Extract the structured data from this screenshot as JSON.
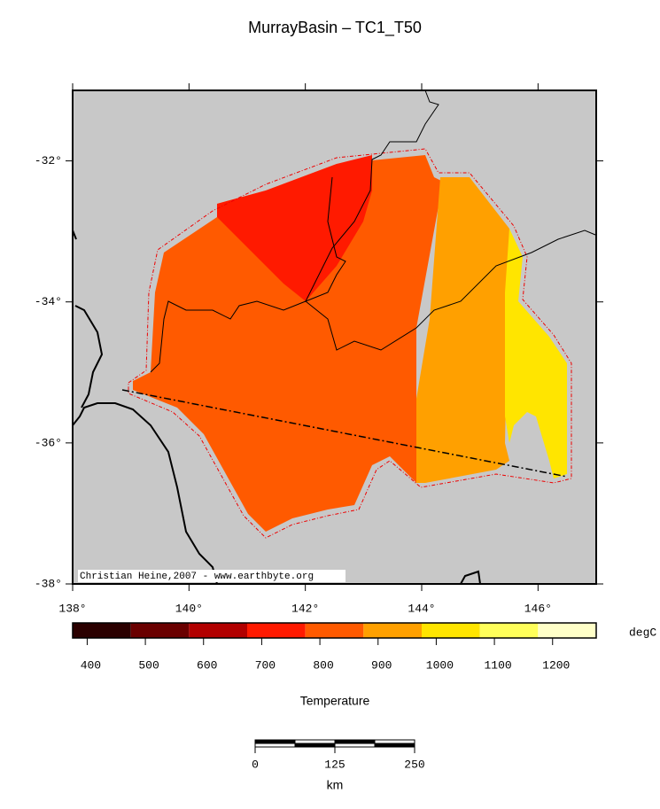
{
  "title": "MurrayBasin – TC1_T50",
  "map": {
    "xlim": [
      138,
      147
    ],
    "ylim": [
      -38,
      -31
    ],
    "xticks": [
      {
        "value": 138,
        "label": "138°"
      },
      {
        "value": 140,
        "label": "140°"
      },
      {
        "value": 142,
        "label": "142°"
      },
      {
        "value": 144,
        "label": "144°"
      },
      {
        "value": 146,
        "label": "146°"
      }
    ],
    "yticks": [
      {
        "value": -32,
        "label": "-32°"
      },
      {
        "value": -34,
        "label": "-34°"
      },
      {
        "value": -36,
        "label": "-36°"
      },
      {
        "value": -38,
        "label": "-38°"
      }
    ]
  },
  "credit": "Christian Heine,2007 - www.earthbyte.org",
  "colorbar": {
    "bins": [
      375,
      475,
      575,
      675,
      775,
      875,
      975,
      1075,
      1175,
      1275
    ],
    "colors": [
      "#2b0000",
      "#6a0000",
      "#b20000",
      "#ff1a00",
      "#ff5a00",
      "#ffa000",
      "#ffe500",
      "#ffff5a",
      "#ffffc8"
    ],
    "ticks": [
      400,
      500,
      600,
      700,
      800,
      900,
      1000,
      1100,
      1200
    ],
    "unit": "degC",
    "label": "Temperature"
  },
  "scale_bar": {
    "lim": [
      0,
      250
    ],
    "ticks": [
      0,
      125,
      250
    ],
    "unit": "km"
  }
}
